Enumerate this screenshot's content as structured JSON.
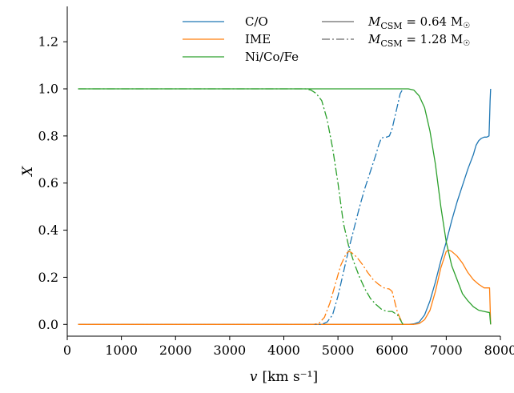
{
  "chart_data": {
    "type": "line",
    "xlabel_var": "v",
    "xlabel_unit": "[km s⁻¹]",
    "ylabel": "X",
    "xlim": [
      0,
      8000
    ],
    "ylim": [
      -0.05,
      1.35
    ],
    "x_ticks": [
      0,
      1000,
      2000,
      3000,
      4000,
      5000,
      6000,
      7000,
      8000
    ],
    "x_tick_labels": [
      "0",
      "1000",
      "2000",
      "3000",
      "4000",
      "5000",
      "6000",
      "7000",
      "8000"
    ],
    "y_ticks": [
      0.0,
      0.2,
      0.4,
      0.6,
      0.8,
      1.0,
      1.2
    ],
    "y_tick_labels": [
      "0.0",
      "0.2",
      "0.4",
      "0.6",
      "0.8",
      "1.0",
      "1.2"
    ],
    "grid": false,
    "legend_placement": "top-right",
    "species": [
      {
        "name": "C/O",
        "color": "#1f77b4"
      },
      {
        "name": "IME",
        "color": "#ff7f0e"
      },
      {
        "name": "Ni/Co/Fe",
        "color": "#2ca02c"
      }
    ],
    "models": [
      {
        "label_main": "M",
        "label_sub": "CSM",
        "label_value": " = 0.64 M",
        "label_sun": "☉",
        "dash": "solid"
      },
      {
        "label_main": "M",
        "label_sub": "CSM",
        "label_value": " = 1.28 M",
        "label_sun": "☉",
        "dash": "dashdot"
      }
    ],
    "series": [
      {
        "species": "C/O",
        "model": "0.64",
        "x": [
          200,
          6300,
          6400,
          6500,
          6600,
          6700,
          6800,
          6900,
          7000,
          7100,
          7200,
          7300,
          7400,
          7500,
          7550,
          7600,
          7650,
          7700,
          7750,
          7790,
          7800,
          7810,
          7820
        ],
        "y": [
          0,
          0,
          0.002,
          0.01,
          0.04,
          0.1,
          0.18,
          0.27,
          0.35,
          0.44,
          0.52,
          0.59,
          0.66,
          0.72,
          0.76,
          0.78,
          0.79,
          0.795,
          0.795,
          0.8,
          0.87,
          0.95,
          1.0
        ]
      },
      {
        "species": "IME",
        "model": "0.64",
        "x": [
          200,
          6400,
          6500,
          6600,
          6700,
          6800,
          6900,
          7000,
          7050,
          7100,
          7200,
          7300,
          7400,
          7500,
          7600,
          7700,
          7800,
          7820
        ],
        "y": [
          0,
          0,
          0.003,
          0.02,
          0.06,
          0.14,
          0.24,
          0.31,
          0.315,
          0.31,
          0.29,
          0.26,
          0.22,
          0.19,
          0.17,
          0.155,
          0.155,
          0.0
        ]
      },
      {
        "species": "Ni/Co/Fe",
        "model": "0.64",
        "x": [
          200,
          6200,
          6300,
          6400,
          6500,
          6600,
          6700,
          6800,
          6900,
          7000,
          7100,
          7200,
          7300,
          7400,
          7500,
          7600,
          7700,
          7800,
          7820
        ],
        "y": [
          1,
          1,
          1,
          0.995,
          0.97,
          0.92,
          0.82,
          0.68,
          0.5,
          0.35,
          0.25,
          0.19,
          0.13,
          0.1,
          0.075,
          0.06,
          0.055,
          0.05,
          0.0
        ]
      },
      {
        "species": "C/O",
        "model": "1.28",
        "x": [
          200,
          4700,
          4800,
          4900,
          5000,
          5100,
          5200,
          5300,
          5400,
          5500,
          5600,
          5700,
          5750,
          5800,
          5850,
          5900,
          5950,
          6000,
          6050,
          6100,
          6150,
          6200
        ],
        "y": [
          0,
          0,
          0.01,
          0.04,
          0.12,
          0.22,
          0.32,
          0.41,
          0.5,
          0.58,
          0.65,
          0.72,
          0.76,
          0.79,
          0.795,
          0.795,
          0.8,
          0.83,
          0.88,
          0.93,
          0.98,
          1.0
        ]
      },
      {
        "species": "IME",
        "model": "1.28",
        "x": [
          200,
          4550,
          4650,
          4750,
          4850,
          4950,
          5050,
          5150,
          5200,
          5250,
          5350,
          5450,
          5550,
          5650,
          5750,
          5850,
          5950,
          6000,
          6100,
          6200
        ],
        "y": [
          0,
          0,
          0.005,
          0.03,
          0.09,
          0.17,
          0.25,
          0.3,
          0.31,
          0.305,
          0.285,
          0.255,
          0.22,
          0.19,
          0.17,
          0.155,
          0.15,
          0.14,
          0.05,
          0.0
        ]
      },
      {
        "species": "Ni/Co/Fe",
        "model": "1.28",
        "x": [
          200,
          4400,
          4500,
          4600,
          4700,
          4800,
          4900,
          5000,
          5100,
          5200,
          5300,
          5400,
          5500,
          5600,
          5700,
          5800,
          5900,
          6000,
          6100,
          6200
        ],
        "y": [
          1,
          1,
          0.995,
          0.98,
          0.95,
          0.87,
          0.75,
          0.6,
          0.43,
          0.33,
          0.26,
          0.2,
          0.15,
          0.11,
          0.085,
          0.065,
          0.055,
          0.055,
          0.04,
          0.0
        ]
      }
    ]
  }
}
